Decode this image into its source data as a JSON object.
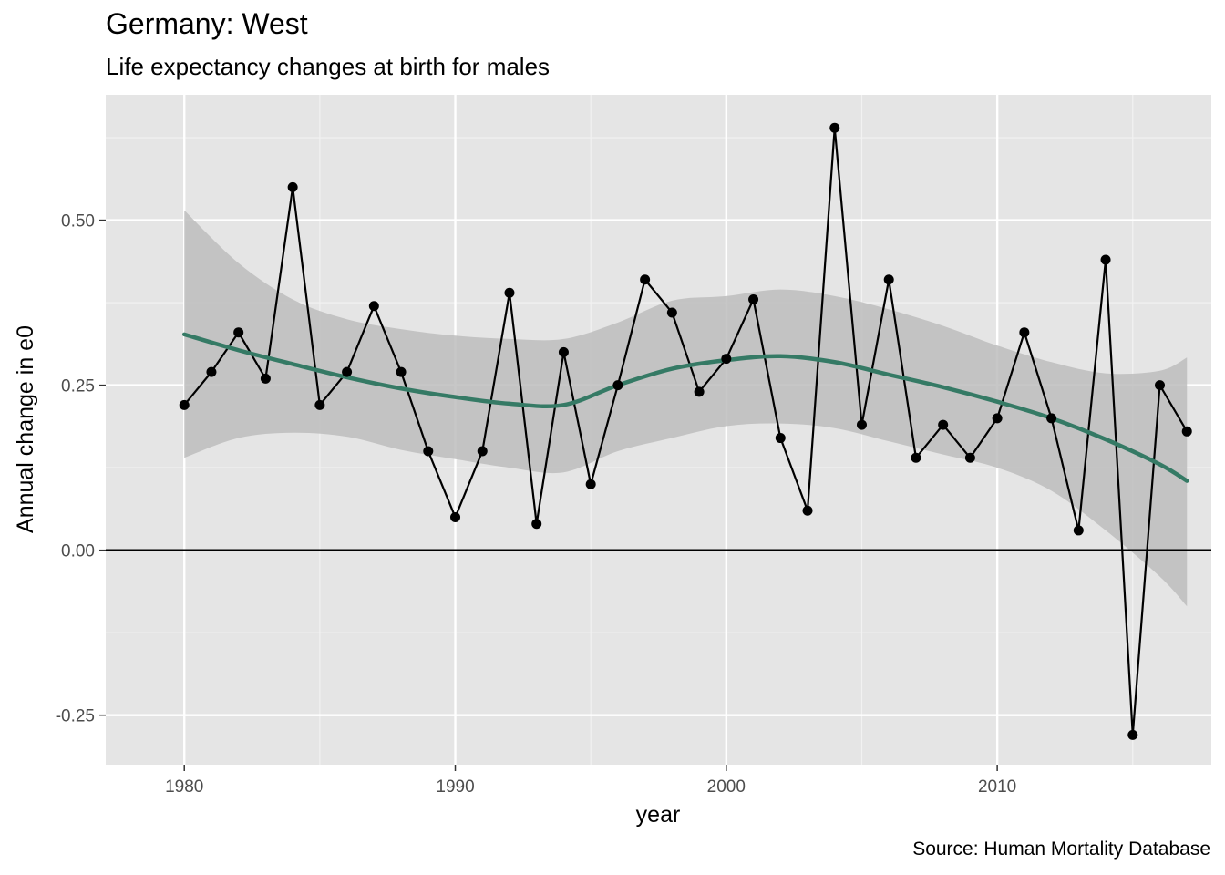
{
  "chart_data": {
    "type": "line",
    "title": "Germany: West",
    "subtitle": "Life expectancy changes at birth for males",
    "caption": "Source: Human Mortality Database",
    "xlabel": "year",
    "ylabel": "Annual change in e0",
    "xlim": [
      1977.1,
      2017.9
    ],
    "ylim": [
      -0.325,
      0.69
    ],
    "x_ticks": [
      1980,
      1990,
      2000,
      2010
    ],
    "x_tick_labels": [
      "1980",
      "1990",
      "2000",
      "2010"
    ],
    "y_ticks": [
      -0.25,
      0,
      0.25,
      0.5
    ],
    "y_tick_labels": [
      "-0.25",
      "0.00",
      "0.25",
      "0.50"
    ],
    "grid": true,
    "reference_line_y": 0,
    "x": [
      1980,
      1981,
      1982,
      1983,
      1984,
      1985,
      1986,
      1987,
      1988,
      1989,
      1990,
      1991,
      1992,
      1993,
      1994,
      1995,
      1996,
      1997,
      1998,
      1999,
      2000,
      2001,
      2002,
      2003,
      2004,
      2005,
      2006,
      2007,
      2008,
      2009,
      2010,
      2011,
      2012,
      2013,
      2014,
      2015,
      2016,
      2017
    ],
    "series": [
      {
        "values": [
          0.22,
          0.27,
          0.33,
          0.26,
          0.55,
          0.22,
          0.27,
          0.37,
          0.27,
          0.15,
          0.05,
          0.15,
          0.39,
          0.04,
          0.3,
          0.1,
          0.25,
          0.41,
          0.36,
          0.24,
          0.29,
          0.38,
          0.17,
          0.06,
          0.64,
          0.19,
          0.41,
          0.14,
          0.19,
          0.14,
          0.2,
          0.33,
          0.2,
          0.03,
          0.44,
          -0.28,
          0.25,
          0.18
        ],
        "color": "#000000"
      }
    ],
    "smooth": {
      "method": "loess",
      "color": "#357a65",
      "band_color": "#bdbdbd",
      "x": [
        1980,
        1982,
        1984,
        1986,
        1988,
        1990,
        1992,
        1994,
        1996,
        1998,
        2000,
        2002,
        2004,
        2006,
        2008,
        2010,
        2012,
        2014,
        2016,
        2017
      ],
      "fit": [
        0.327,
        0.303,
        0.282,
        0.262,
        0.245,
        0.232,
        0.222,
        0.22,
        0.25,
        0.275,
        0.288,
        0.294,
        0.285,
        0.266,
        0.247,
        0.225,
        0.2,
        0.168,
        0.13,
        0.105
      ],
      "lower": [
        0.14,
        0.17,
        0.178,
        0.172,
        0.152,
        0.138,
        0.125,
        0.118,
        0.15,
        0.17,
        0.188,
        0.192,
        0.185,
        0.165,
        0.145,
        0.125,
        0.09,
        0.03,
        -0.04,
        -0.085
      ],
      "upper": [
        0.515,
        0.435,
        0.38,
        0.35,
        0.335,
        0.325,
        0.32,
        0.32,
        0.345,
        0.378,
        0.385,
        0.395,
        0.385,
        0.365,
        0.34,
        0.31,
        0.285,
        0.268,
        0.272,
        0.292
      ]
    }
  }
}
